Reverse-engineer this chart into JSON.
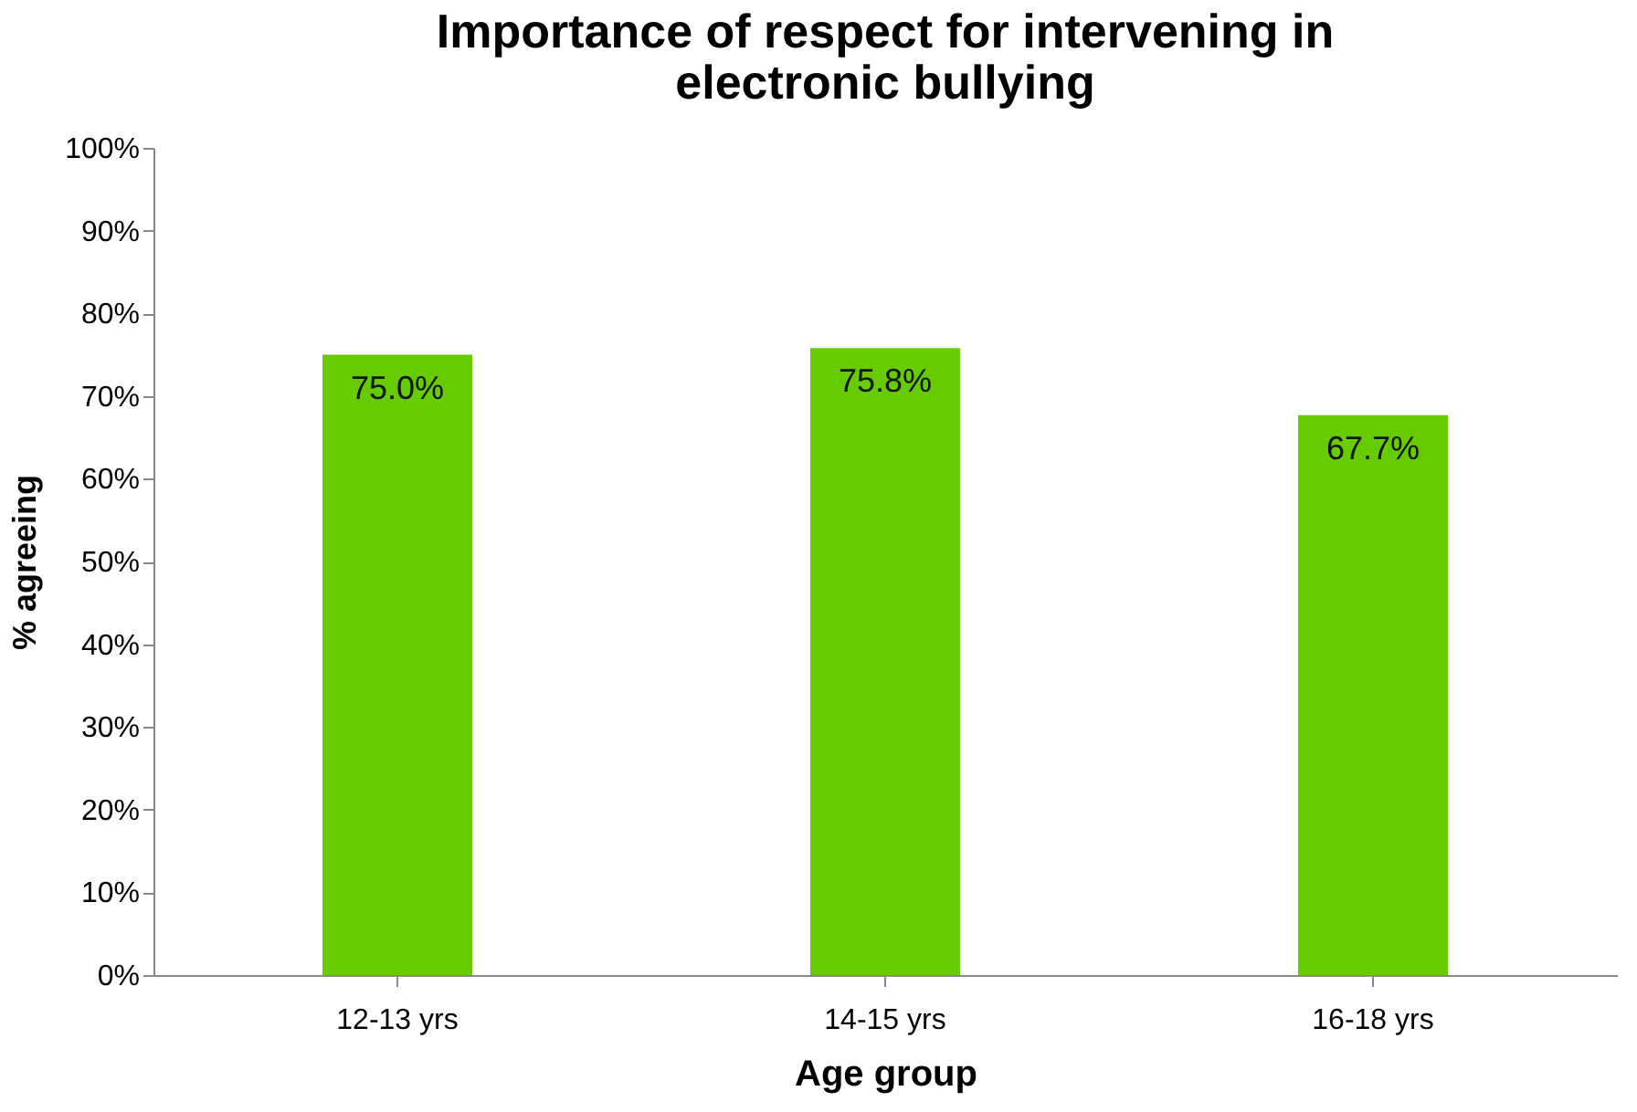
{
  "chart_data": {
    "type": "bar",
    "title": [
      "Importance of respect for intervening in",
      "electronic bullying"
    ],
    "xlabel": "Age group",
    "ylabel": "% agreeing",
    "categories": [
      "12-13 yrs",
      "14-15 yrs",
      "16-18 yrs"
    ],
    "values": [
      75.0,
      75.8,
      67.7
    ],
    "color": "#66cc00",
    "value_labels": [
      "75.0%",
      "75.8%",
      "67.7%"
    ],
    "ylim": [
      0,
      100
    ],
    "yticks": [
      {
        "value": 0,
        "label": "0%"
      },
      {
        "value": 10,
        "label": "10%"
      },
      {
        "value": 20,
        "label": "20%"
      },
      {
        "value": 30,
        "label": "30%"
      },
      {
        "value": 40,
        "label": "40%"
      },
      {
        "value": 50,
        "label": "50%"
      },
      {
        "value": 60,
        "label": "60%"
      },
      {
        "value": 70,
        "label": "70%"
      },
      {
        "value": 80,
        "label": "80%"
      },
      {
        "value": 90,
        "label": "90%"
      },
      {
        "value": 100,
        "label": "100%"
      }
    ],
    "grid": false
  }
}
